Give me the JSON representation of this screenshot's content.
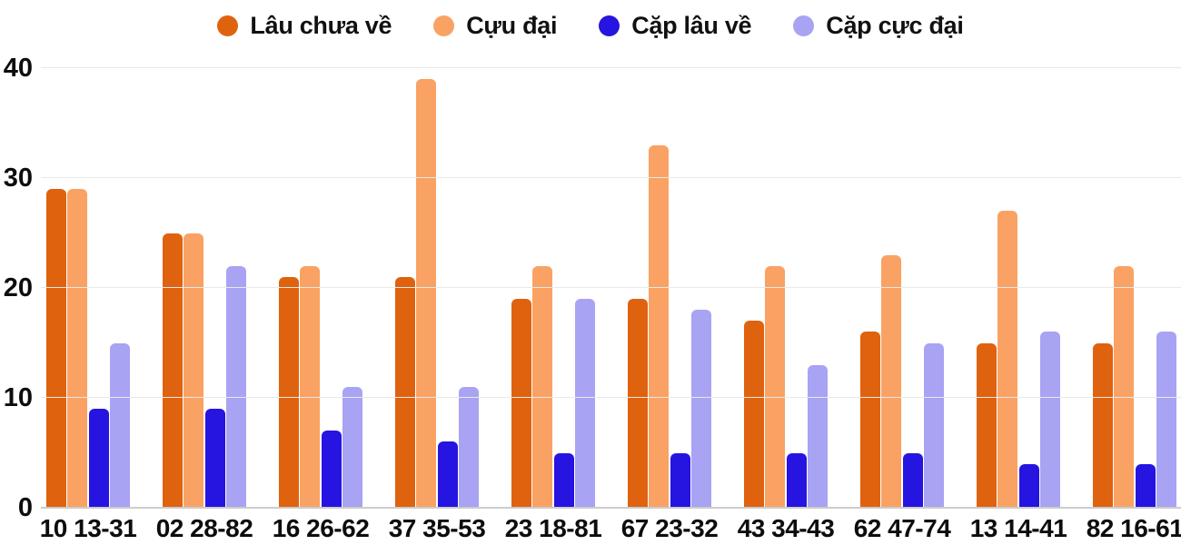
{
  "colors": {
    "series_1": "#df620f",
    "series_2": "#faa263",
    "series_3": "#2614e0",
    "series_4": "#a8a3f3",
    "gridline": "#e9e9e9",
    "baseline": "#cccccc",
    "text": "#0d0d0d",
    "background": "#ffffff"
  },
  "legend": {
    "items": [
      {
        "label": "Lâu chưa về",
        "color": "#df620f"
      },
      {
        "label": "Cựu đại",
        "color": "#faa263"
      },
      {
        "label": "Cặp lâu về",
        "color": "#2614e0"
      },
      {
        "label": "Cặp cực đại",
        "color": "#a8a3f3"
      }
    ]
  },
  "chart_data": {
    "type": "bar",
    "title": "",
    "xlabel": "",
    "ylabel": "",
    "categories": [
      "10 13-31",
      "02 28-82",
      "16 26-62",
      "37 35-53",
      "23 18-81",
      "67 23-32",
      "43 34-43",
      "62 47-74",
      "13 14-41",
      "82 16-61"
    ],
    "series": [
      {
        "name": "Lâu chưa về",
        "color": "#df620f",
        "values": [
          29,
          25,
          21,
          21,
          19,
          19,
          17,
          16,
          15,
          15
        ]
      },
      {
        "name": "Cựu đại",
        "color": "#faa263",
        "values": [
          29,
          25,
          22,
          39,
          22,
          33,
          22,
          23,
          27,
          22
        ]
      },
      {
        "name": "Cặp lâu về",
        "color": "#2614e0",
        "values": [
          9,
          9,
          7,
          6,
          5,
          5,
          5,
          5,
          4,
          4
        ]
      },
      {
        "name": "Cặp cực đại",
        "color": "#a8a3f3",
        "values": [
          15,
          22,
          11,
          11,
          19,
          18,
          13,
          15,
          16,
          16
        ]
      }
    ],
    "yticks": [
      0,
      10,
      20,
      30,
      40
    ],
    "ylim": [
      0,
      40
    ],
    "grid": true,
    "legend_position": "top"
  }
}
